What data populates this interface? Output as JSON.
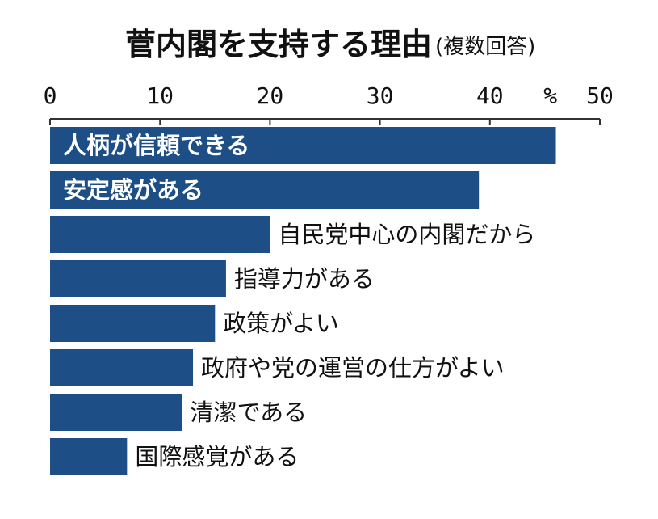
{
  "chart_data": {
    "type": "bar",
    "orientation": "horizontal",
    "title": "菅内閣を支持する理由",
    "subtitle": "(複数回答)",
    "unit": "%",
    "xlim": [
      0,
      50
    ],
    "ticks": [
      0,
      10,
      20,
      30,
      40,
      50
    ],
    "categories": [
      "人柄が信頼できる",
      "安定感がある",
      "自民党中心の内閣だから",
      "指導力がある",
      "政策がよい",
      "政府や党の運営の仕方がよい",
      "清潔である",
      "国際感覚がある"
    ],
    "values": [
      46,
      39,
      20,
      16,
      15,
      13,
      12,
      7
    ],
    "label_inside_bar": [
      true,
      true,
      false,
      false,
      false,
      false,
      false,
      false
    ],
    "bar_color": "#1d4f86",
    "grid": false
  }
}
